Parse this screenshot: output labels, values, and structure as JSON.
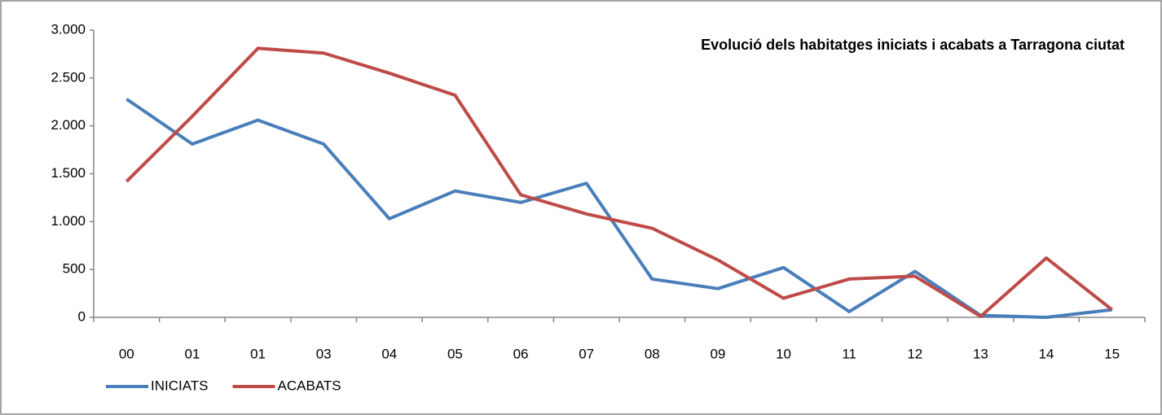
{
  "chart_data": {
    "type": "line",
    "title": "Evolució dels habitatges iniciats i acabats a Tarragona ciutat",
    "categories": [
      "00",
      "01",
      "01",
      "03",
      "04",
      "05",
      "06",
      "07",
      "08",
      "09",
      "10",
      "11",
      "12",
      "13",
      "14",
      "15"
    ],
    "series": [
      {
        "name": "INICIATS",
        "color": "#4a7ebb",
        "values": [
          2280,
          1810,
          2060,
          1810,
          1030,
          1320,
          1200,
          1400,
          400,
          300,
          520,
          60,
          480,
          20,
          0,
          80
        ]
      },
      {
        "name": "ACABATS",
        "color": "#be4b48",
        "values": [
          1420,
          2100,
          2810,
          2760,
          2550,
          2320,
          1280,
          1080,
          930,
          600,
          200,
          400,
          430,
          10,
          620,
          80
        ]
      }
    ],
    "ylim": [
      0,
      3000
    ],
    "yticks": [
      0,
      500,
      {
        "value": 1000,
        "label": "1.000"
      },
      {
        "value": 1500,
        "label": "1.500"
      },
      {
        "value": 2000,
        "label": "2.000"
      },
      {
        "value": 2500,
        "label": "2.500"
      },
      {
        "value": 3000,
        "label": "3.000"
      }
    ],
    "grid": false,
    "legend": "bottom-left"
  }
}
